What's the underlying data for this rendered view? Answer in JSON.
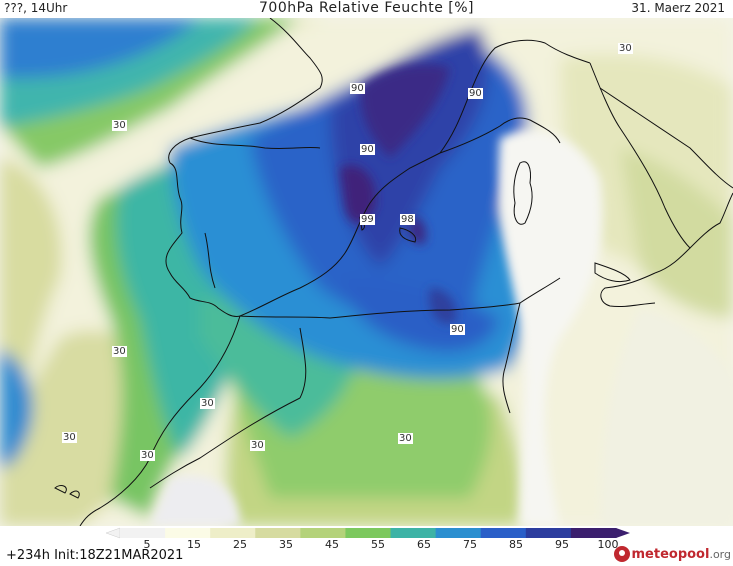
{
  "header": {
    "left": "???, 14Uhr",
    "title": "700hPa Relative Feuchte [%]",
    "date": "31. Maerz 2021"
  },
  "footer": {
    "init": "+234h  Init:18Z21MAR2021",
    "logo_brand": "meteopool",
    "logo_domain": ".org"
  },
  "colorbar": {
    "ticks": [
      "5",
      "15",
      "25",
      "35",
      "45",
      "55",
      "65",
      "75",
      "85",
      "95",
      "100"
    ],
    "colors": [
      "#f2f2f2",
      "#fbfbe6",
      "#eeeec8",
      "#d6dba0",
      "#b4d27a",
      "#7cc85e",
      "#3db3a6",
      "#2b8fd0",
      "#2a5fc8",
      "#2c3d9e",
      "#3b1f6e"
    ]
  },
  "contour_labels": [
    {
      "text": "30",
      "color": "white"
    },
    {
      "text": "90",
      "color": "white"
    },
    {
      "text": "90",
      "color": "white"
    },
    {
      "text": "30",
      "color": "white"
    },
    {
      "text": "30",
      "color": "white"
    },
    {
      "text": "30",
      "color": "white"
    },
    {
      "text": "30",
      "color": "white"
    },
    {
      "text": "30",
      "color": "white"
    },
    {
      "text": "30",
      "color": "white"
    },
    {
      "text": "30",
      "color": "white"
    },
    {
      "text": "90",
      "color": "white"
    },
    {
      "text": "90",
      "color": "white"
    },
    {
      "text": "99",
      "color": "white"
    },
    {
      "text": "98",
      "color": "white"
    },
    {
      "text": "30",
      "color": "white"
    }
  ]
}
